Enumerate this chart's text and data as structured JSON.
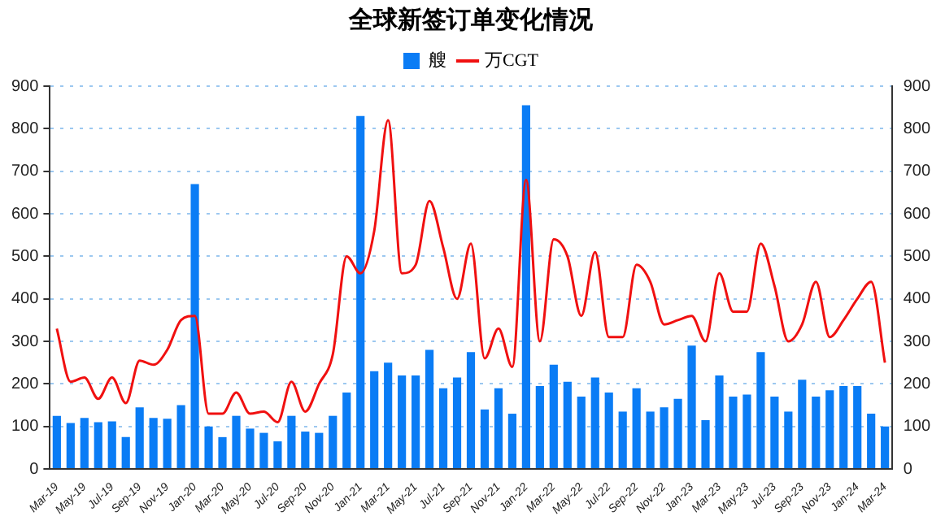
{
  "chart_data": {
    "type": "bar",
    "title": "全球新签订单变化情况",
    "categories": [
      "Mar-19",
      null,
      "May-19",
      null,
      "Jul-19",
      null,
      "Sep-19",
      null,
      "Nov-19",
      null,
      "Jan-20",
      null,
      "Mar-20",
      null,
      "May-20",
      null,
      "Jul-20",
      null,
      "Sep-20",
      null,
      "Nov-20",
      null,
      "Jan-21",
      null,
      "Mar-21",
      null,
      "May-21",
      null,
      "Jul-21",
      null,
      "Sep-21",
      null,
      "Nov-21",
      null,
      "Jan-22",
      null,
      "Mar-22",
      null,
      "May-22",
      null,
      "Jul-22",
      null,
      "Sep-22",
      null,
      "Nov-22",
      null,
      "Jan-23",
      null,
      "Mar-23",
      null,
      "May-23",
      null,
      "Jul-23",
      null,
      "Sep-23",
      null,
      "Nov-23",
      null,
      "Jan-24",
      null,
      "Mar-24"
    ],
    "series": [
      {
        "name": "艘",
        "color": "#0a7cf5",
        "values": [
          125,
          108,
          120,
          110,
          112,
          75,
          145,
          120,
          118,
          150,
          670,
          100,
          75,
          125,
          95,
          85,
          65,
          125,
          88,
          85,
          125,
          180,
          830,
          230,
          250,
          220,
          220,
          280,
          190,
          215,
          275,
          140,
          190,
          130,
          855,
          195,
          245,
          205,
          170,
          215,
          180,
          135,
          190,
          135,
          145,
          165,
          290,
          115,
          220,
          170,
          175,
          275,
          170,
          135,
          210,
          170,
          185,
          195,
          195,
          130,
          100
        ]
      },
      {
        "name": "万CGT",
        "type": "line",
        "axis": "y2",
        "color": "#f01010",
        "values": [
          330,
          205,
          215,
          165,
          215,
          155,
          255,
          245,
          280,
          350,
          360,
          130,
          130,
          180,
          130,
          135,
          110,
          205,
          135,
          200,
          270,
          500,
          460,
          560,
          820,
          460,
          480,
          630,
          520,
          400,
          530,
          260,
          330,
          240,
          680,
          300,
          540,
          500,
          360,
          510,
          310,
          310,
          480,
          440,
          340,
          350,
          360,
          300,
          460,
          370,
          370,
          530,
          430,
          300,
          340,
          440,
          310,
          350,
          400,
          440,
          250
        ]
      }
    ],
    "ylim": [
      0,
      900
    ],
    "yticks": [
      0,
      100,
      200,
      300,
      400,
      500,
      600,
      700,
      800,
      900
    ],
    "y2lim": [
      0,
      900
    ],
    "y2ticks": [
      0,
      100,
      200,
      300,
      400,
      500,
      600,
      700,
      800,
      900
    ],
    "grid": "y",
    "legend": "top",
    "marker": "none"
  }
}
